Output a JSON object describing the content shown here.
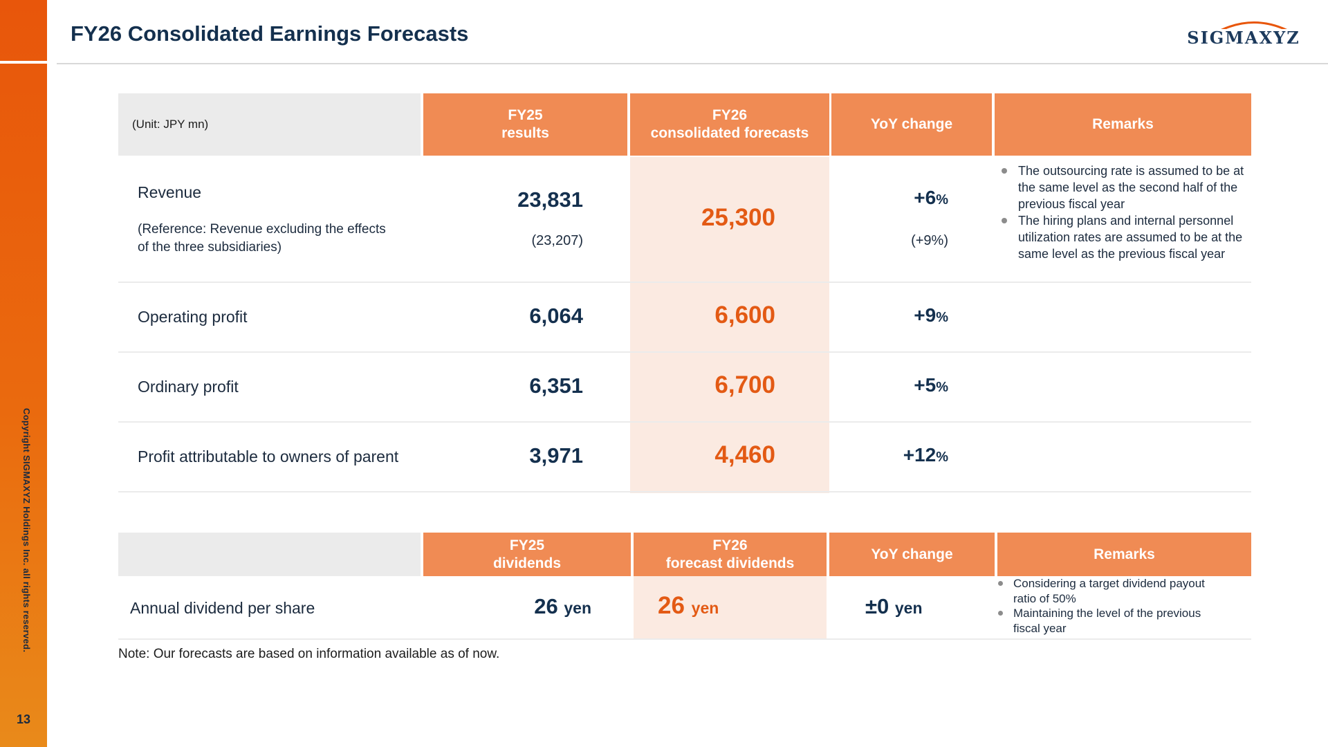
{
  "page": {
    "title": "FY26 Consolidated Earnings Forecasts",
    "logo": "SIGMAXYZ",
    "copyright": "Copyright SIGMAXYZ Holdings Inc. all rights reserved.",
    "page_number": "13",
    "brand_color": "#e8560b",
    "header_color": "#f08b54",
    "forecast_color": "#e35a14"
  },
  "earnings": {
    "unit": "(Unit: JPY mn)",
    "headers": {
      "fy25_line1": "FY25",
      "fy25_line2": "results",
      "fy26_line1": "FY26",
      "fy26_line2": "consolidated forecasts",
      "yoy": "YoY change",
      "remarks": "Remarks"
    },
    "revenue": {
      "label": "Revenue",
      "sub_label_line1": "(Reference: Revenue excluding the effects",
      "sub_label_line2": "of the three subsidiaries)",
      "fy25": "23,831",
      "fy25_sub": "(23,207)",
      "fy26": "25,300",
      "yoy_value": "+6",
      "yoy_unit": "%",
      "yoy_sub": "(+9%)",
      "remarks": [
        "The outsourcing rate is assumed to be at the same level as the second half of the previous fiscal year",
        "The hiring plans and internal personnel utilization rates are assumed to be at the same level as the previous fiscal year"
      ]
    },
    "operating_profit": {
      "label": "Operating profit",
      "fy25": "6,064",
      "fy26": "6,600",
      "yoy_value": "+9",
      "yoy_unit": "%"
    },
    "ordinary_profit": {
      "label": "Ordinary profit",
      "fy25": "6,351",
      "fy26": "6,700",
      "yoy_value": "+5",
      "yoy_unit": "%"
    },
    "profit_owners": {
      "label": "Profit attributable to owners of parent",
      "fy25": "3,971",
      "fy26": "4,460",
      "yoy_value": "+12",
      "yoy_unit": "%"
    }
  },
  "dividends": {
    "headers": {
      "fy25_line1": "FY25",
      "fy25_line2": "dividends",
      "fy26_line1": "FY26",
      "fy26_line2": "forecast dividends",
      "yoy": "YoY change",
      "remarks": "Remarks"
    },
    "row": {
      "label": "Annual dividend per share",
      "fy25_value": "26",
      "fy25_unit": "yen",
      "fy26_value": "26",
      "fy26_unit": "yen",
      "yoy_value": "±0",
      "yoy_unit": "yen",
      "remarks": [
        "Considering a target dividend payout ratio of 50%",
        "Maintaining the level of the previous fiscal year"
      ]
    }
  },
  "note": "Note: Our forecasts are based on information available as of now."
}
